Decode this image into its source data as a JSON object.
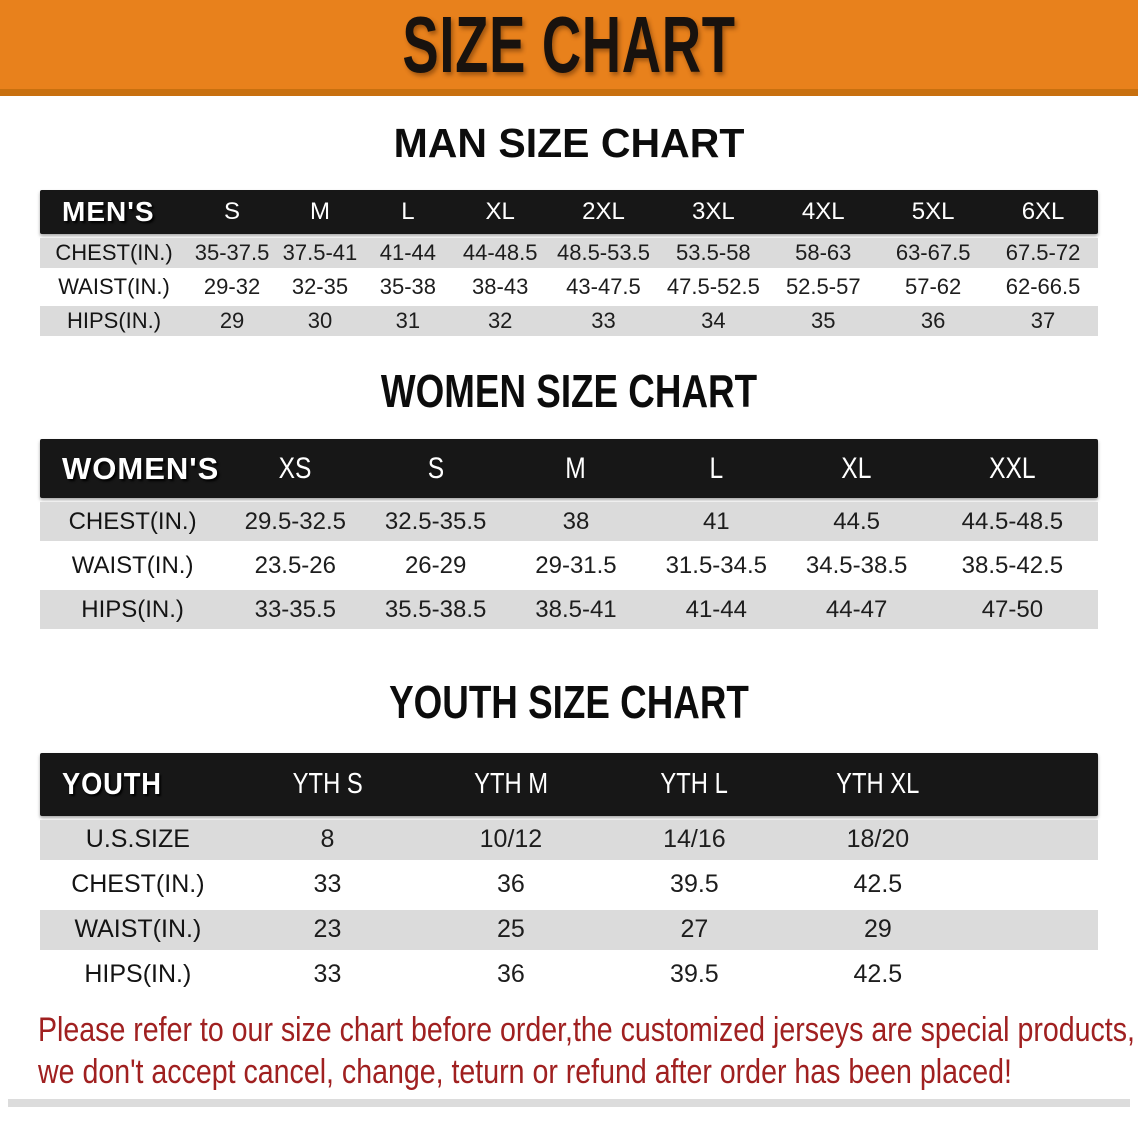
{
  "banner": {
    "title": "SIZE CHART",
    "bg_color": "#e8811c",
    "text_color": "#18120e"
  },
  "sections": [
    {
      "title": "MAN SIZE CHART",
      "header_label": "MEN'S",
      "columns": [
        "S",
        "M",
        "L",
        "XL",
        "2XL",
        "3XL",
        "4XL",
        "5XL",
        "6XL"
      ],
      "rows": [
        {
          "label": "CHEST(IN.)",
          "values": [
            "35-37.5",
            "37.5-41",
            "41-44",
            "44-48.5",
            "48.5-53.5",
            "53.5-58",
            "58-63",
            "63-67.5",
            "67.5-72"
          ]
        },
        {
          "label": "WAIST(IN.)",
          "values": [
            "29-32",
            "32-35",
            "35-38",
            "38-43",
            "43-47.5",
            "47.5-52.5",
            "52.5-57",
            "57-62",
            "62-66.5"
          ]
        },
        {
          "label": "HIPS(IN.)",
          "values": [
            "29",
            "30",
            "31",
            "32",
            "33",
            "34",
            "35",
            "36",
            "37"
          ]
        }
      ]
    },
    {
      "title": "WOMEN SIZE CHART",
      "header_label": "WOMEN'S",
      "columns": [
        "XS",
        "S",
        "M",
        "L",
        "XL",
        "XXL"
      ],
      "rows": [
        {
          "label": "CHEST(IN.)",
          "values": [
            "29.5-32.5",
            "32.5-35.5",
            "38",
            "41",
            "44.5",
            "44.5-48.5"
          ]
        },
        {
          "label": "WAIST(IN.)",
          "values": [
            "23.5-26",
            "26-29",
            "29-31.5",
            "31.5-34.5",
            "34.5-38.5",
            "38.5-42.5"
          ]
        },
        {
          "label": "HIPS(IN.)",
          "values": [
            "33-35.5",
            "35.5-38.5",
            "38.5-41",
            "41-44",
            "44-47",
            "47-50"
          ]
        }
      ]
    },
    {
      "title": "YOUTH SIZE CHART",
      "header_label": "YOUTH",
      "columns": [
        "YTH S",
        "YTH M",
        "YTH L",
        "YTH XL"
      ],
      "rows": [
        {
          "label": "U.S.SIZE",
          "values": [
            "8",
            "10/12",
            "14/16",
            "18/20"
          ]
        },
        {
          "label": "CHEST(IN.)",
          "values": [
            "33",
            "36",
            "39.5",
            "42.5"
          ]
        },
        {
          "label": "WAIST(IN.)",
          "values": [
            "23",
            "25",
            "27",
            "29"
          ]
        },
        {
          "label": "HIPS(IN.)",
          "values": [
            "33",
            "36",
            "39.5",
            "42.5"
          ]
        }
      ]
    }
  ],
  "disclaimer": {
    "color": "#a02020",
    "lines": [
      "Please refer to our size chart before order,the customized jerseys are special products,",
      "we don't accept cancel, change, teturn or refund after order has been placed!"
    ]
  }
}
